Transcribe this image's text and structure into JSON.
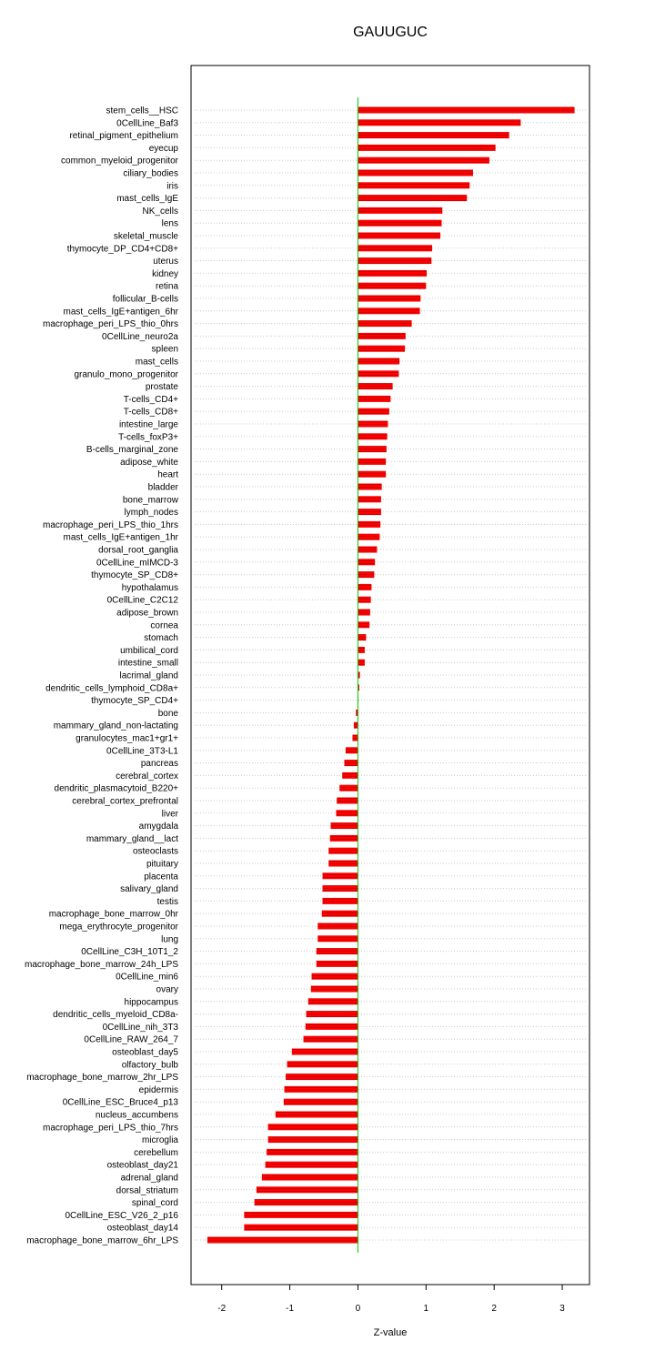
{
  "chart_data": {
    "type": "bar",
    "orientation": "horizontal",
    "title": "GAUUGUC",
    "xlabel": "Z-value",
    "ylabel": "",
    "xlim": [
      -2.45,
      3.4
    ],
    "xticks": [
      -2,
      -1,
      0,
      1,
      2,
      3
    ],
    "xtick_labels": [
      "-2",
      "-1",
      "0",
      "1",
      "2",
      "3"
    ],
    "grid": "dotted horizontal",
    "colors": {
      "bar": "#ff0000",
      "bar_stripe": "#c80000",
      "zero_line": "#00cc00",
      "grid": "#c8c8c8"
    },
    "categories": [
      "stem_cells__HSC",
      "0CellLine_Baf3",
      "retinal_pigment_epithelium",
      "eyecup",
      "common_myeloid_progenitor",
      "ciliary_bodies",
      "iris",
      "mast_cells_IgE",
      "NK_cells",
      "lens",
      "skeletal_muscle",
      "thymocyte_DP_CD4+CD8+",
      "uterus",
      "kidney",
      "retina",
      "follicular_B-cells",
      "mast_cells_IgE+antigen_6hr",
      "macrophage_peri_LPS_thio_0hrs",
      "0CellLine_neuro2a",
      "spleen",
      "mast_cells",
      "granulo_mono_progenitor",
      "prostate",
      "T-cells_CD4+",
      "T-cells_CD8+",
      "intestine_large",
      "T-cells_foxP3+",
      "B-cells_marginal_zone",
      "adipose_white",
      "heart",
      "bladder",
      "bone_marrow",
      "lymph_nodes",
      "macrophage_peri_LPS_thio_1hrs",
      "mast_cells_IgE+antigen_1hr",
      "dorsal_root_ganglia",
      "0CellLine_mIMCD-3",
      "thymocyte_SP_CD8+",
      "hypothalamus",
      "0CellLine_C2C12",
      "adipose_brown",
      "cornea",
      "stomach",
      "umbilical_cord",
      "intestine_small",
      "lacrimal_gland",
      "dendritic_cells_lymphoid_CD8a+",
      "thymocyte_SP_CD4+",
      "bone",
      "mammary_gland_non-lactating",
      "granulocytes_mac1+gr1+",
      "0CellLine_3T3-L1",
      "pancreas",
      "cerebral_cortex",
      "dendritic_plasmacytoid_B220+",
      "cerebral_cortex_prefrontal",
      "liver",
      "amygdala",
      "mammary_gland__lact",
      "osteoclasts",
      "pituitary",
      "placenta",
      "salivary_gland",
      "testis",
      "macrophage_bone_marrow_0hr",
      "mega_erythrocyte_progenitor",
      "lung",
      "0CellLine_C3H_10T1_2",
      "macrophage_bone_marrow_24h_LPS",
      "0CellLine_min6",
      "ovary",
      "hippocampus",
      "dendritic_cells_myeloid_CD8a-",
      "0CellLine_nih_3T3",
      "0CellLine_RAW_264_7",
      "osteoblast_day5",
      "olfactory_bulb",
      "macrophage_bone_marrow_2hr_LPS",
      "epidermis",
      "0CellLine_ESC_Bruce4_p13",
      "nucleus_accumbens",
      "macrophage_peri_LPS_thio_7hrs",
      "microglia",
      "cerebellum",
      "osteoblast_day21",
      "adrenal_gland",
      "dorsal_striatum",
      "spinal_cord",
      "0CellLine_ESC_V26_2_p16",
      "osteoblast_day14",
      "macrophage_bone_marrow_6hr_LPS"
    ],
    "values": [
      3.18,
      2.39,
      2.22,
      2.02,
      1.93,
      1.69,
      1.64,
      1.6,
      1.24,
      1.23,
      1.21,
      1.09,
      1.08,
      1.01,
      1.0,
      0.92,
      0.91,
      0.79,
      0.7,
      0.69,
      0.61,
      0.6,
      0.51,
      0.48,
      0.46,
      0.44,
      0.43,
      0.42,
      0.41,
      0.41,
      0.35,
      0.34,
      0.34,
      0.33,
      0.32,
      0.28,
      0.25,
      0.24,
      0.2,
      0.19,
      0.18,
      0.17,
      0.12,
      0.1,
      0.1,
      0.03,
      0.02,
      0.0,
      -0.03,
      -0.06,
      -0.08,
      -0.18,
      -0.2,
      -0.23,
      -0.27,
      -0.31,
      -0.32,
      -0.4,
      -0.41,
      -0.43,
      -0.43,
      -0.52,
      -0.52,
      -0.52,
      -0.53,
      -0.59,
      -0.59,
      -0.61,
      -0.61,
      -0.68,
      -0.69,
      -0.73,
      -0.76,
      -0.77,
      -0.8,
      -0.97,
      -1.04,
      -1.06,
      -1.08,
      -1.09,
      -1.21,
      -1.32,
      -1.32,
      -1.34,
      -1.36,
      -1.41,
      -1.49,
      -1.52,
      -1.67,
      -1.67,
      -2.21
    ]
  }
}
